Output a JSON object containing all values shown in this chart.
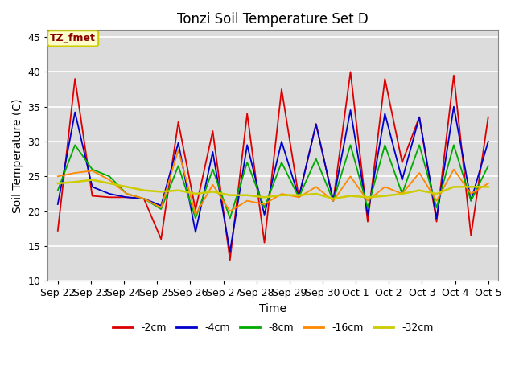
{
  "title": "Tonzi Soil Temperature Set D",
  "xlabel": "Time",
  "ylabel": "Soil Temperature (C)",
  "ylim": [
    10,
    46
  ],
  "yticks": [
    10,
    15,
    20,
    25,
    30,
    35,
    40,
    45
  ],
  "annotation_text": "TZ_fmet",
  "annotation_color": "#8B0000",
  "annotation_bg": "#FFFFCC",
  "annotation_border": "#CCCC00",
  "fig_bg": "#FFFFFF",
  "plot_bg": "#DCDCDC",
  "grid_color": "#FFFFFF",
  "xtick_labels": [
    "Sep 22",
    "Sep 23",
    "Sep 24",
    "Sep 25",
    "Sep 26",
    "Sep 27",
    "Sep 28",
    "Sep 29",
    "Sep 30",
    "Oct 1",
    "Oct 2",
    "Oct 3",
    "Oct 4",
    "Oct 5"
  ],
  "series_order": [
    "-2cm",
    "-4cm",
    "-8cm",
    "-16cm",
    "-32cm"
  ],
  "series": {
    "-2cm": {
      "color": "#DD0000",
      "lw": 1.3
    },
    "-4cm": {
      "color": "#0000CC",
      "lw": 1.3
    },
    "-8cm": {
      "color": "#00AA00",
      "lw": 1.3
    },
    "-16cm": {
      "color": "#FF8800",
      "lw": 1.3
    },
    "-32cm": {
      "color": "#CCCC00",
      "lw": 1.8
    }
  },
  "data": {
    "-2cm": [
      17.2,
      39.0,
      22.2,
      22.0,
      22.0,
      21.8,
      16.0,
      32.8,
      20.2,
      31.5,
      13.0,
      34.0,
      15.5,
      37.5,
      22.0,
      32.5,
      21.5,
      40.0,
      18.5,
      39.0,
      27.0,
      33.5,
      18.5,
      39.5,
      16.5,
      33.5
    ],
    "-4cm": [
      21.0,
      34.2,
      23.5,
      22.5,
      22.0,
      21.8,
      20.8,
      29.8,
      17.0,
      28.5,
      14.2,
      29.5,
      19.5,
      30.0,
      22.0,
      32.5,
      21.5,
      34.5,
      19.5,
      34.0,
      24.5,
      33.5,
      19.0,
      35.0,
      21.5,
      30.0
    ],
    "-8cm": [
      23.0,
      29.5,
      26.0,
      25.0,
      22.5,
      21.8,
      20.3,
      26.5,
      19.0,
      26.0,
      19.0,
      27.0,
      20.5,
      27.0,
      22.0,
      27.5,
      21.5,
      29.5,
      20.5,
      29.5,
      22.5,
      29.5,
      20.5,
      29.5,
      21.5,
      26.5
    ],
    "-16cm": [
      25.0,
      25.5,
      25.8,
      24.5,
      22.5,
      21.8,
      20.5,
      28.8,
      19.5,
      23.8,
      20.0,
      21.5,
      21.0,
      22.5,
      22.0,
      23.5,
      21.5,
      25.0,
      21.5,
      23.5,
      22.5,
      25.5,
      21.5,
      26.0,
      22.5,
      24.0
    ],
    "-32cm": [
      24.0,
      24.2,
      24.5,
      24.0,
      23.5,
      23.0,
      22.8,
      23.0,
      22.5,
      22.8,
      22.3,
      22.3,
      22.0,
      22.3,
      22.3,
      22.5,
      21.8,
      22.2,
      22.0,
      22.2,
      22.5,
      23.0,
      22.5,
      23.5,
      23.5,
      23.5
    ]
  }
}
